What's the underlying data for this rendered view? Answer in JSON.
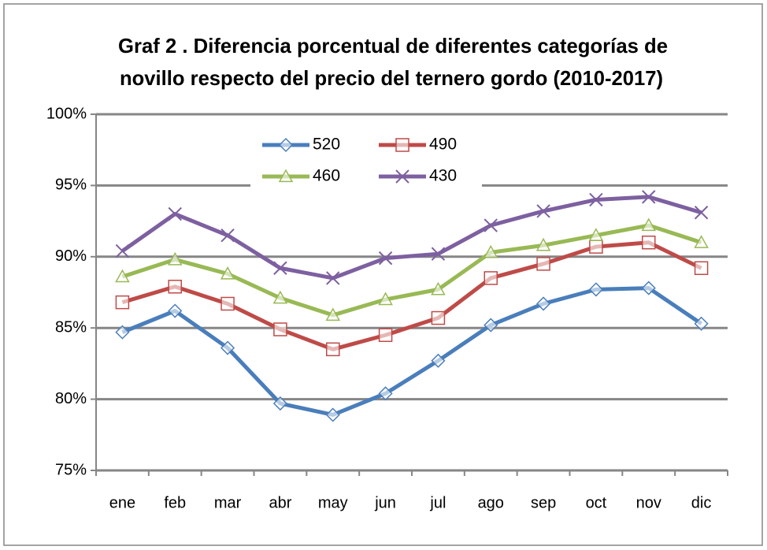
{
  "chart_data": {
    "type": "line",
    "title": [
      "Graf 2 . Diferencia porcentual de diferentes categorías de",
      "novillo respecto del precio del ternero gordo (2010-2017)"
    ],
    "categories": [
      "ene",
      "feb",
      "mar",
      "abr",
      "may",
      "jun",
      "jul",
      "ago",
      "sep",
      "oct",
      "nov",
      "dic"
    ],
    "series": [
      {
        "name": "520",
        "color": "#4a7ebb",
        "marker": "diamond",
        "values": [
          84.7,
          86.2,
          83.6,
          79.7,
          78.9,
          80.4,
          82.7,
          85.2,
          86.7,
          87.7,
          87.8,
          85.3
        ]
      },
      {
        "name": "490",
        "color": "#be4b48",
        "marker": "square",
        "values": [
          86.8,
          87.9,
          86.7,
          84.9,
          83.5,
          84.5,
          85.7,
          88.5,
          89.5,
          90.7,
          91.0,
          89.2
        ]
      },
      {
        "name": "460",
        "color": "#98b954",
        "marker": "triangle",
        "values": [
          88.6,
          89.8,
          88.8,
          87.1,
          85.9,
          87.0,
          87.7,
          90.3,
          90.8,
          91.5,
          92.2,
          91.0
        ]
      },
      {
        "name": "430",
        "color": "#7d60a0",
        "marker": "x",
        "values": [
          90.4,
          93.0,
          91.5,
          89.2,
          88.5,
          89.9,
          90.2,
          92.2,
          93.2,
          94.0,
          94.2,
          93.1
        ]
      }
    ],
    "ylim": [
      75,
      100
    ],
    "yticks": [
      {
        "value": 75,
        "label": "75%"
      },
      {
        "value": 80,
        "label": "80%"
      },
      {
        "value": 85,
        "label": "85%"
      },
      {
        "value": 90,
        "label": "90%"
      },
      {
        "value": 95,
        "label": "95%"
      },
      {
        "value": 100,
        "label": "100%"
      }
    ],
    "grid": true
  }
}
